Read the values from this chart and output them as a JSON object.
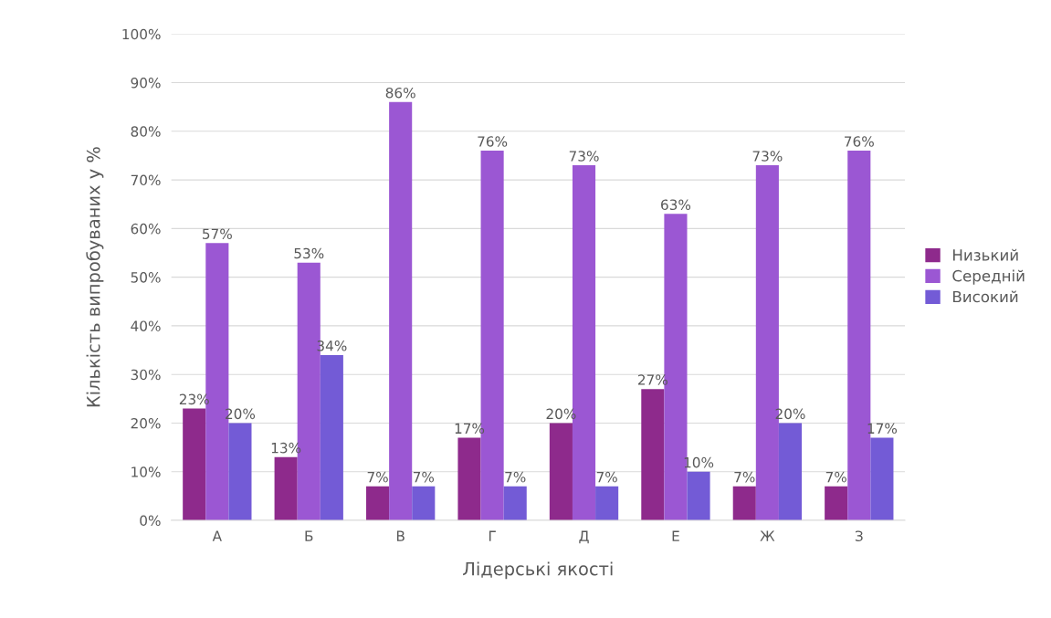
{
  "chart_data": {
    "type": "bar",
    "xlabel": "Лідерські якості",
    "ylabel": "Кількість випробуваних у %",
    "categories": [
      "А",
      "Б",
      "В",
      "Г",
      "Д",
      "Е",
      "Ж",
      "З"
    ],
    "series": [
      {
        "name": "Низький",
        "color": "#8e2a8c",
        "values": [
          23,
          13,
          7,
          17,
          20,
          27,
          7,
          7
        ],
        "value_labels": [
          "23%",
          "13%",
          "7%",
          "17%",
          "20%",
          "27%",
          "7%",
          "7%"
        ]
      },
      {
        "name": "Середній",
        "color": "#9b57d3",
        "values": [
          57,
          53,
          86,
          76,
          73,
          63,
          73,
          76
        ],
        "value_labels": [
          "57%",
          "53%",
          "86%",
          "76%",
          "73%",
          "63%",
          "73%",
          "76%"
        ]
      },
      {
        "name": "Високий",
        "color": "#735bd6",
        "values": [
          20,
          34,
          7,
          7,
          7,
          10,
          20,
          17
        ],
        "value_labels": [
          "20%",
          "34%",
          "7%",
          "7%",
          "7%",
          "10%",
          "20%",
          "17%"
        ]
      }
    ],
    "ylim": [
      0,
      100
    ],
    "yticks": [
      {
        "value": 0,
        "label": "0%"
      },
      {
        "value": 10,
        "label": "10%"
      },
      {
        "value": 20,
        "label": "20%"
      },
      {
        "value": 30,
        "label": "30%"
      },
      {
        "value": 40,
        "label": "40%"
      },
      {
        "value": 50,
        "label": "50%"
      },
      {
        "value": 60,
        "label": "60%"
      },
      {
        "value": 70,
        "label": "70%"
      },
      {
        "value": 80,
        "label": "80%"
      },
      {
        "value": 90,
        "label": "90%"
      },
      {
        "value": 100,
        "label": "100%"
      }
    ],
    "grid": "y",
    "legend": "right"
  }
}
